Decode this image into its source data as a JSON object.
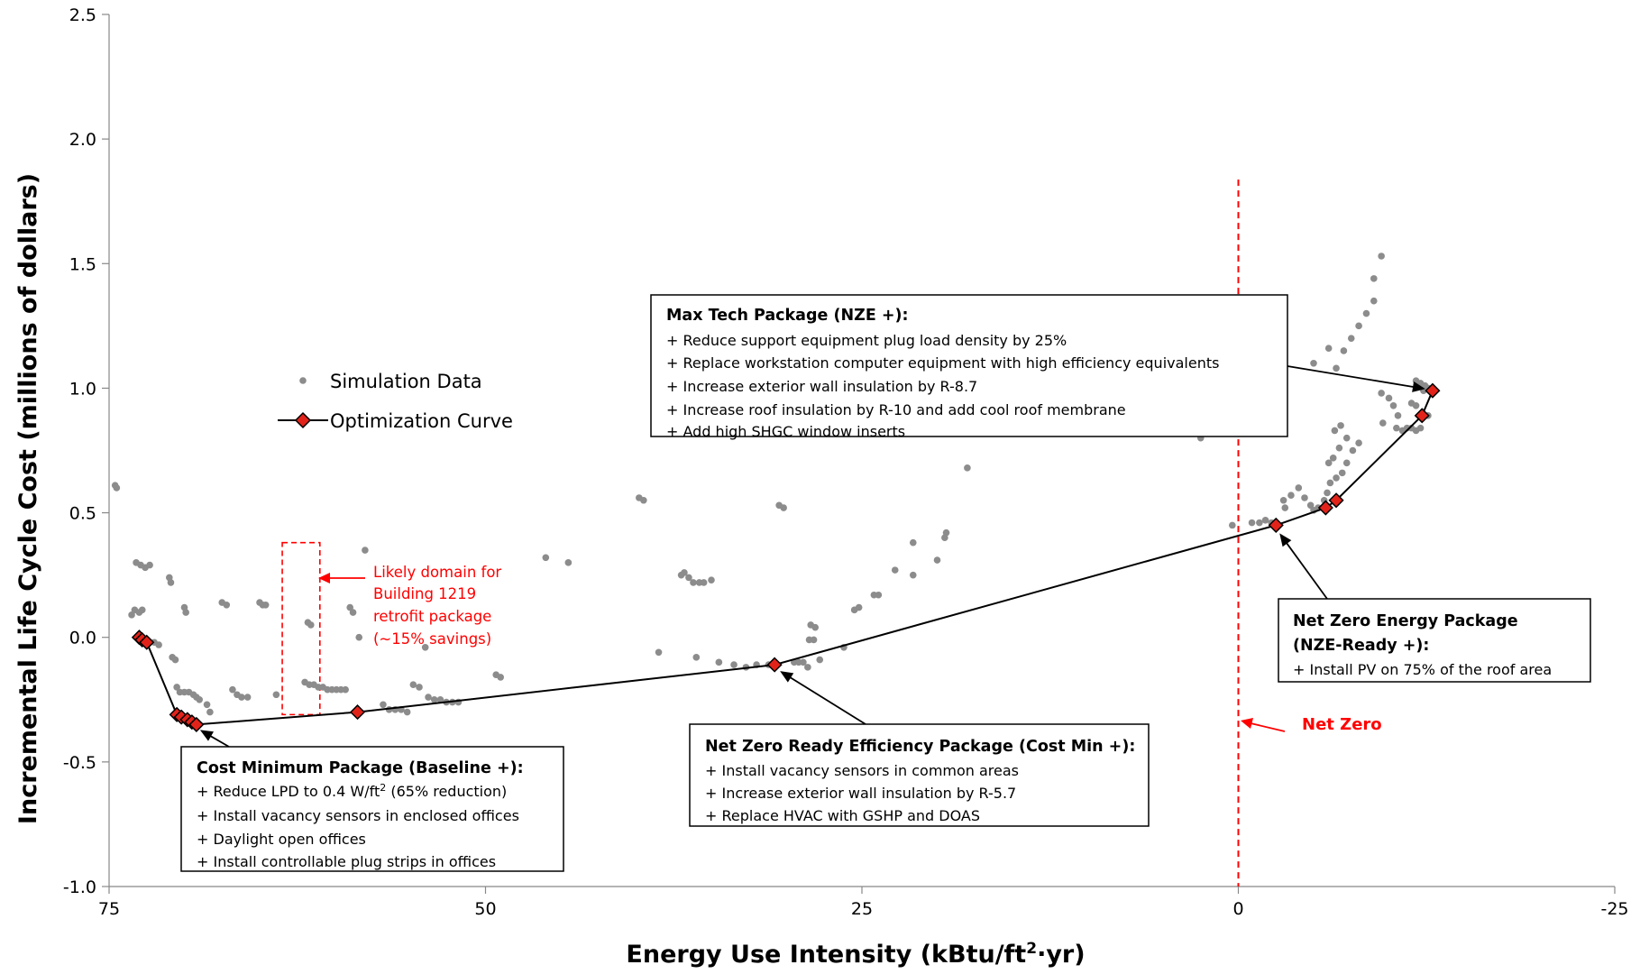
{
  "chart_data": {
    "type": "scatter",
    "xlabel_main": "Energy Use Intensity (kBtu/ft",
    "xlabel_sup": "2",
    "xlabel_end": "·yr)",
    "ylabel": "Incremental Life Cycle Cost (millions of dollars)",
    "xlim": [
      75,
      -25
    ],
    "ylim": [
      -1.0,
      2.5
    ],
    "x_ticks": [
      75,
      50,
      25,
      0,
      -25
    ],
    "y_ticks": [
      2.5,
      2.0,
      1.5,
      1.0,
      0.5,
      0.0,
      -0.5,
      -1.0
    ],
    "x_tick_labels": [
      "75",
      "50",
      "25",
      "0",
      "-25"
    ],
    "y_tick_labels": [
      "2.5",
      "2.0",
      "1.5",
      "1.0",
      "0.5",
      "0.0",
      "-0.5",
      "-1.0"
    ],
    "grid": false,
    "colors": {
      "simulation": "#8c8c8c",
      "optimization": "#e2231a",
      "annotation": "#ff0000"
    },
    "legend": {
      "position": "upper-left",
      "entries": [
        "Simulation Data",
        "Optimization Curve"
      ]
    },
    "series": [
      {
        "name": "Simulation Data",
        "kind": "scatter",
        "points": [
          [
            74.6,
            0.61
          ],
          [
            74.5,
            0.6
          ],
          [
            73.5,
            0.09
          ],
          [
            73.3,
            0.11
          ],
          [
            73.0,
            0.1
          ],
          [
            72.8,
            0.11
          ],
          [
            73.2,
            0.3
          ],
          [
            72.9,
            0.29
          ],
          [
            72.6,
            0.28
          ],
          [
            72.3,
            0.29
          ],
          [
            73.0,
            0.01
          ],
          [
            72.6,
            -0.01
          ],
          [
            72.3,
            -0.02
          ],
          [
            72.0,
            -0.02
          ],
          [
            71.7,
            -0.03
          ],
          [
            71.0,
            0.24
          ],
          [
            70.9,
            0.22
          ],
          [
            70.8,
            -0.08
          ],
          [
            70.6,
            -0.09
          ],
          [
            70.0,
            0.12
          ],
          [
            69.9,
            0.1
          ],
          [
            70.5,
            -0.2
          ],
          [
            70.3,
            -0.22
          ],
          [
            70.0,
            -0.22
          ],
          [
            69.7,
            -0.22
          ],
          [
            69.4,
            -0.23
          ],
          [
            69.2,
            -0.24
          ],
          [
            69.0,
            -0.25
          ],
          [
            68.5,
            -0.27
          ],
          [
            68.3,
            -0.3
          ],
          [
            67.5,
            0.14
          ],
          [
            67.2,
            0.13
          ],
          [
            66.8,
            -0.21
          ],
          [
            66.5,
            -0.23
          ],
          [
            66.2,
            -0.24
          ],
          [
            65.8,
            -0.24
          ],
          [
            65.0,
            0.14
          ],
          [
            64.8,
            0.13
          ],
          [
            64.6,
            0.13
          ],
          [
            63.9,
            -0.23
          ],
          [
            61.8,
            0.06
          ],
          [
            61.6,
            0.05
          ],
          [
            62.0,
            -0.18
          ],
          [
            61.7,
            -0.19
          ],
          [
            61.4,
            -0.19
          ],
          [
            61.1,
            -0.2
          ],
          [
            60.8,
            -0.2
          ],
          [
            60.5,
            -0.21
          ],
          [
            60.2,
            -0.21
          ],
          [
            59.9,
            -0.21
          ],
          [
            59.6,
            -0.21
          ],
          [
            59.3,
            -0.21
          ],
          [
            59.0,
            0.12
          ],
          [
            58.8,
            0.1
          ],
          [
            58.4,
            0.0
          ],
          [
            58.0,
            0.35
          ],
          [
            56.8,
            -0.27
          ],
          [
            56.4,
            -0.29
          ],
          [
            56.0,
            -0.29
          ],
          [
            55.6,
            -0.29
          ],
          [
            55.2,
            -0.3
          ],
          [
            54.8,
            -0.19
          ],
          [
            54.4,
            -0.2
          ],
          [
            54.0,
            -0.04
          ],
          [
            53.8,
            -0.24
          ],
          [
            53.4,
            -0.25
          ],
          [
            53.0,
            -0.25
          ],
          [
            52.6,
            -0.26
          ],
          [
            52.2,
            -0.26
          ],
          [
            51.8,
            -0.26
          ],
          [
            49.3,
            -0.15
          ],
          [
            49.0,
            -0.16
          ],
          [
            46.0,
            0.32
          ],
          [
            44.5,
            0.3
          ],
          [
            39.8,
            0.56
          ],
          [
            39.5,
            0.55
          ],
          [
            38.5,
            -0.06
          ],
          [
            37.0,
            0.25
          ],
          [
            36.8,
            0.26
          ],
          [
            36.5,
            0.24
          ],
          [
            36.2,
            0.22
          ],
          [
            35.8,
            0.22
          ],
          [
            35.5,
            0.22
          ],
          [
            35.0,
            0.23
          ],
          [
            36.0,
            -0.08
          ],
          [
            34.5,
            -0.1
          ],
          [
            33.5,
            -0.11
          ],
          [
            32.7,
            -0.12
          ],
          [
            32.0,
            -0.11
          ],
          [
            31.2,
            -0.11
          ],
          [
            30.5,
            0.53
          ],
          [
            30.2,
            0.52
          ],
          [
            29.5,
            -0.1
          ],
          [
            29.2,
            -0.1
          ],
          [
            28.9,
            -0.1
          ],
          [
            28.6,
            -0.12
          ],
          [
            28.4,
            0.05
          ],
          [
            28.1,
            0.04
          ],
          [
            28.5,
            -0.01
          ],
          [
            28.2,
            -0.01
          ],
          [
            27.8,
            -0.09
          ],
          [
            26.2,
            -0.04
          ],
          [
            25.5,
            0.11
          ],
          [
            25.2,
            0.12
          ],
          [
            24.2,
            0.17
          ],
          [
            23.9,
            0.17
          ],
          [
            22.8,
            0.27
          ],
          [
            21.6,
            0.38
          ],
          [
            21.6,
            0.25
          ],
          [
            20.0,
            0.31
          ],
          [
            19.5,
            0.4
          ],
          [
            19.4,
            0.42
          ],
          [
            18.0,
            0.68
          ],
          [
            2.5,
            0.8
          ],
          [
            0.4,
            0.45
          ],
          [
            -0.9,
            0.46
          ],
          [
            -1.4,
            0.46
          ],
          [
            -1.8,
            0.47
          ],
          [
            -2.2,
            0.46
          ],
          [
            -2.6,
            0.45
          ],
          [
            -3.0,
            0.55
          ],
          [
            -3.1,
            0.52
          ],
          [
            -3.5,
            0.57
          ],
          [
            -4.0,
            0.6
          ],
          [
            -4.4,
            0.56
          ],
          [
            -4.8,
            0.53
          ],
          [
            -5.0,
            0.51
          ],
          [
            -5.3,
            0.52
          ],
          [
            -5.7,
            0.55
          ],
          [
            -5.9,
            0.58
          ],
          [
            -6.1,
            0.62
          ],
          [
            -6.5,
            0.64
          ],
          [
            -6.9,
            0.66
          ],
          [
            -7.2,
            0.7
          ],
          [
            -7.6,
            0.75
          ],
          [
            -8.0,
            0.78
          ],
          [
            -6.0,
            0.7
          ],
          [
            -6.3,
            0.72
          ],
          [
            -6.7,
            0.76
          ],
          [
            -6.4,
            0.83
          ],
          [
            -6.8,
            0.85
          ],
          [
            -7.2,
            0.8
          ],
          [
            -6.5,
            1.08
          ],
          [
            -7.0,
            1.15
          ],
          [
            -7.5,
            1.2
          ],
          [
            -8.0,
            1.25
          ],
          [
            -8.5,
            1.3
          ],
          [
            -9.0,
            1.35
          ],
          [
            -6.0,
            1.16
          ],
          [
            -5.0,
            1.1
          ],
          [
            -9.5,
            0.98
          ],
          [
            -10.0,
            0.96
          ],
          [
            -10.3,
            0.93
          ],
          [
            -10.6,
            0.89
          ],
          [
            -10.5,
            0.84
          ],
          [
            -10.9,
            0.83
          ],
          [
            -11.2,
            0.84
          ],
          [
            -11.5,
            0.84
          ],
          [
            -11.8,
            0.83
          ],
          [
            -12.1,
            0.84
          ],
          [
            -9.6,
            0.86
          ],
          [
            -11.5,
            0.94
          ],
          [
            -11.8,
            0.93
          ],
          [
            -12.3,
            0.99
          ],
          [
            -12.6,
            1.0
          ],
          [
            -12.9,
            0.99
          ],
          [
            -11.8,
            1.03
          ],
          [
            -12.1,
            1.02
          ],
          [
            -12.4,
            1.01
          ],
          [
            -12.3,
            0.89
          ],
          [
            -12.6,
            0.89
          ],
          [
            -9.0,
            1.44
          ],
          [
            -9.5,
            1.53
          ]
        ]
      },
      {
        "name": "Optimization Curve",
        "kind": "line-diamond",
        "points": [
          [
            73.0,
            0.0
          ],
          [
            72.8,
            -0.01
          ],
          [
            72.5,
            -0.02
          ],
          [
            70.5,
            -0.31
          ],
          [
            70.2,
            -0.32
          ],
          [
            69.8,
            -0.33
          ],
          [
            69.5,
            -0.34
          ],
          [
            69.2,
            -0.35
          ],
          [
            58.5,
            -0.3
          ],
          [
            30.8,
            -0.11
          ],
          [
            -2.5,
            0.45
          ],
          [
            -5.8,
            0.52
          ],
          [
            -6.5,
            0.55
          ],
          [
            -12.2,
            0.89
          ],
          [
            -12.9,
            0.99
          ]
        ]
      }
    ],
    "annotations": [
      {
        "id": "max-tech",
        "title": "Max Tech Package (NZE +):",
        "items": [
          "+ Reduce support equipment plug load density by 25%",
          "+ Replace workstation computer equipment with high efficiency equivalents",
          "+ Increase exterior wall insulation by R-8.7",
          "+ Increase roof insulation by R-10 and add cool roof membrane",
          "+ Add high SHGC window inserts"
        ],
        "target": [
          -12.9,
          0.99
        ]
      },
      {
        "id": "net-zero-energy",
        "title": "Net Zero Energy Package",
        "title2": "(NZE-Ready +):",
        "items": [
          "+ Install PV on 75% of the roof area"
        ],
        "target": [
          -2.5,
          0.45
        ]
      },
      {
        "id": "net-zero-ready",
        "title": "Net Zero Ready Efficiency Package (Cost Min +):",
        "items": [
          "+ Install vacancy sensors in common areas",
          "+ Increase exterior wall insulation by R-5.7",
          "+ Replace HVAC with GSHP and DOAS"
        ],
        "target": [
          30.8,
          -0.11
        ]
      },
      {
        "id": "cost-minimum",
        "title": "Cost Minimum Package (Baseline +):",
        "items": [
          "+ Reduce LPD to 0.4 W/ft",
          "+ Install vacancy sensors in enclosed offices",
          "+ Daylight open offices",
          "+ Install controllable plug strips in offices"
        ],
        "item_sup": "2",
        "item_suffix": " (65% reduction)",
        "target": [
          69.2,
          -0.35
        ]
      }
    ],
    "likely_domain": {
      "x_range": [
        63.5,
        61.0
      ],
      "y_range": [
        -0.31,
        0.38
      ],
      "label_lines": [
        "Likely domain for",
        "Building 1219",
        "retrofit package",
        "(~15% savings)"
      ]
    },
    "net_zero": {
      "x": 0,
      "label": "Net Zero"
    }
  }
}
